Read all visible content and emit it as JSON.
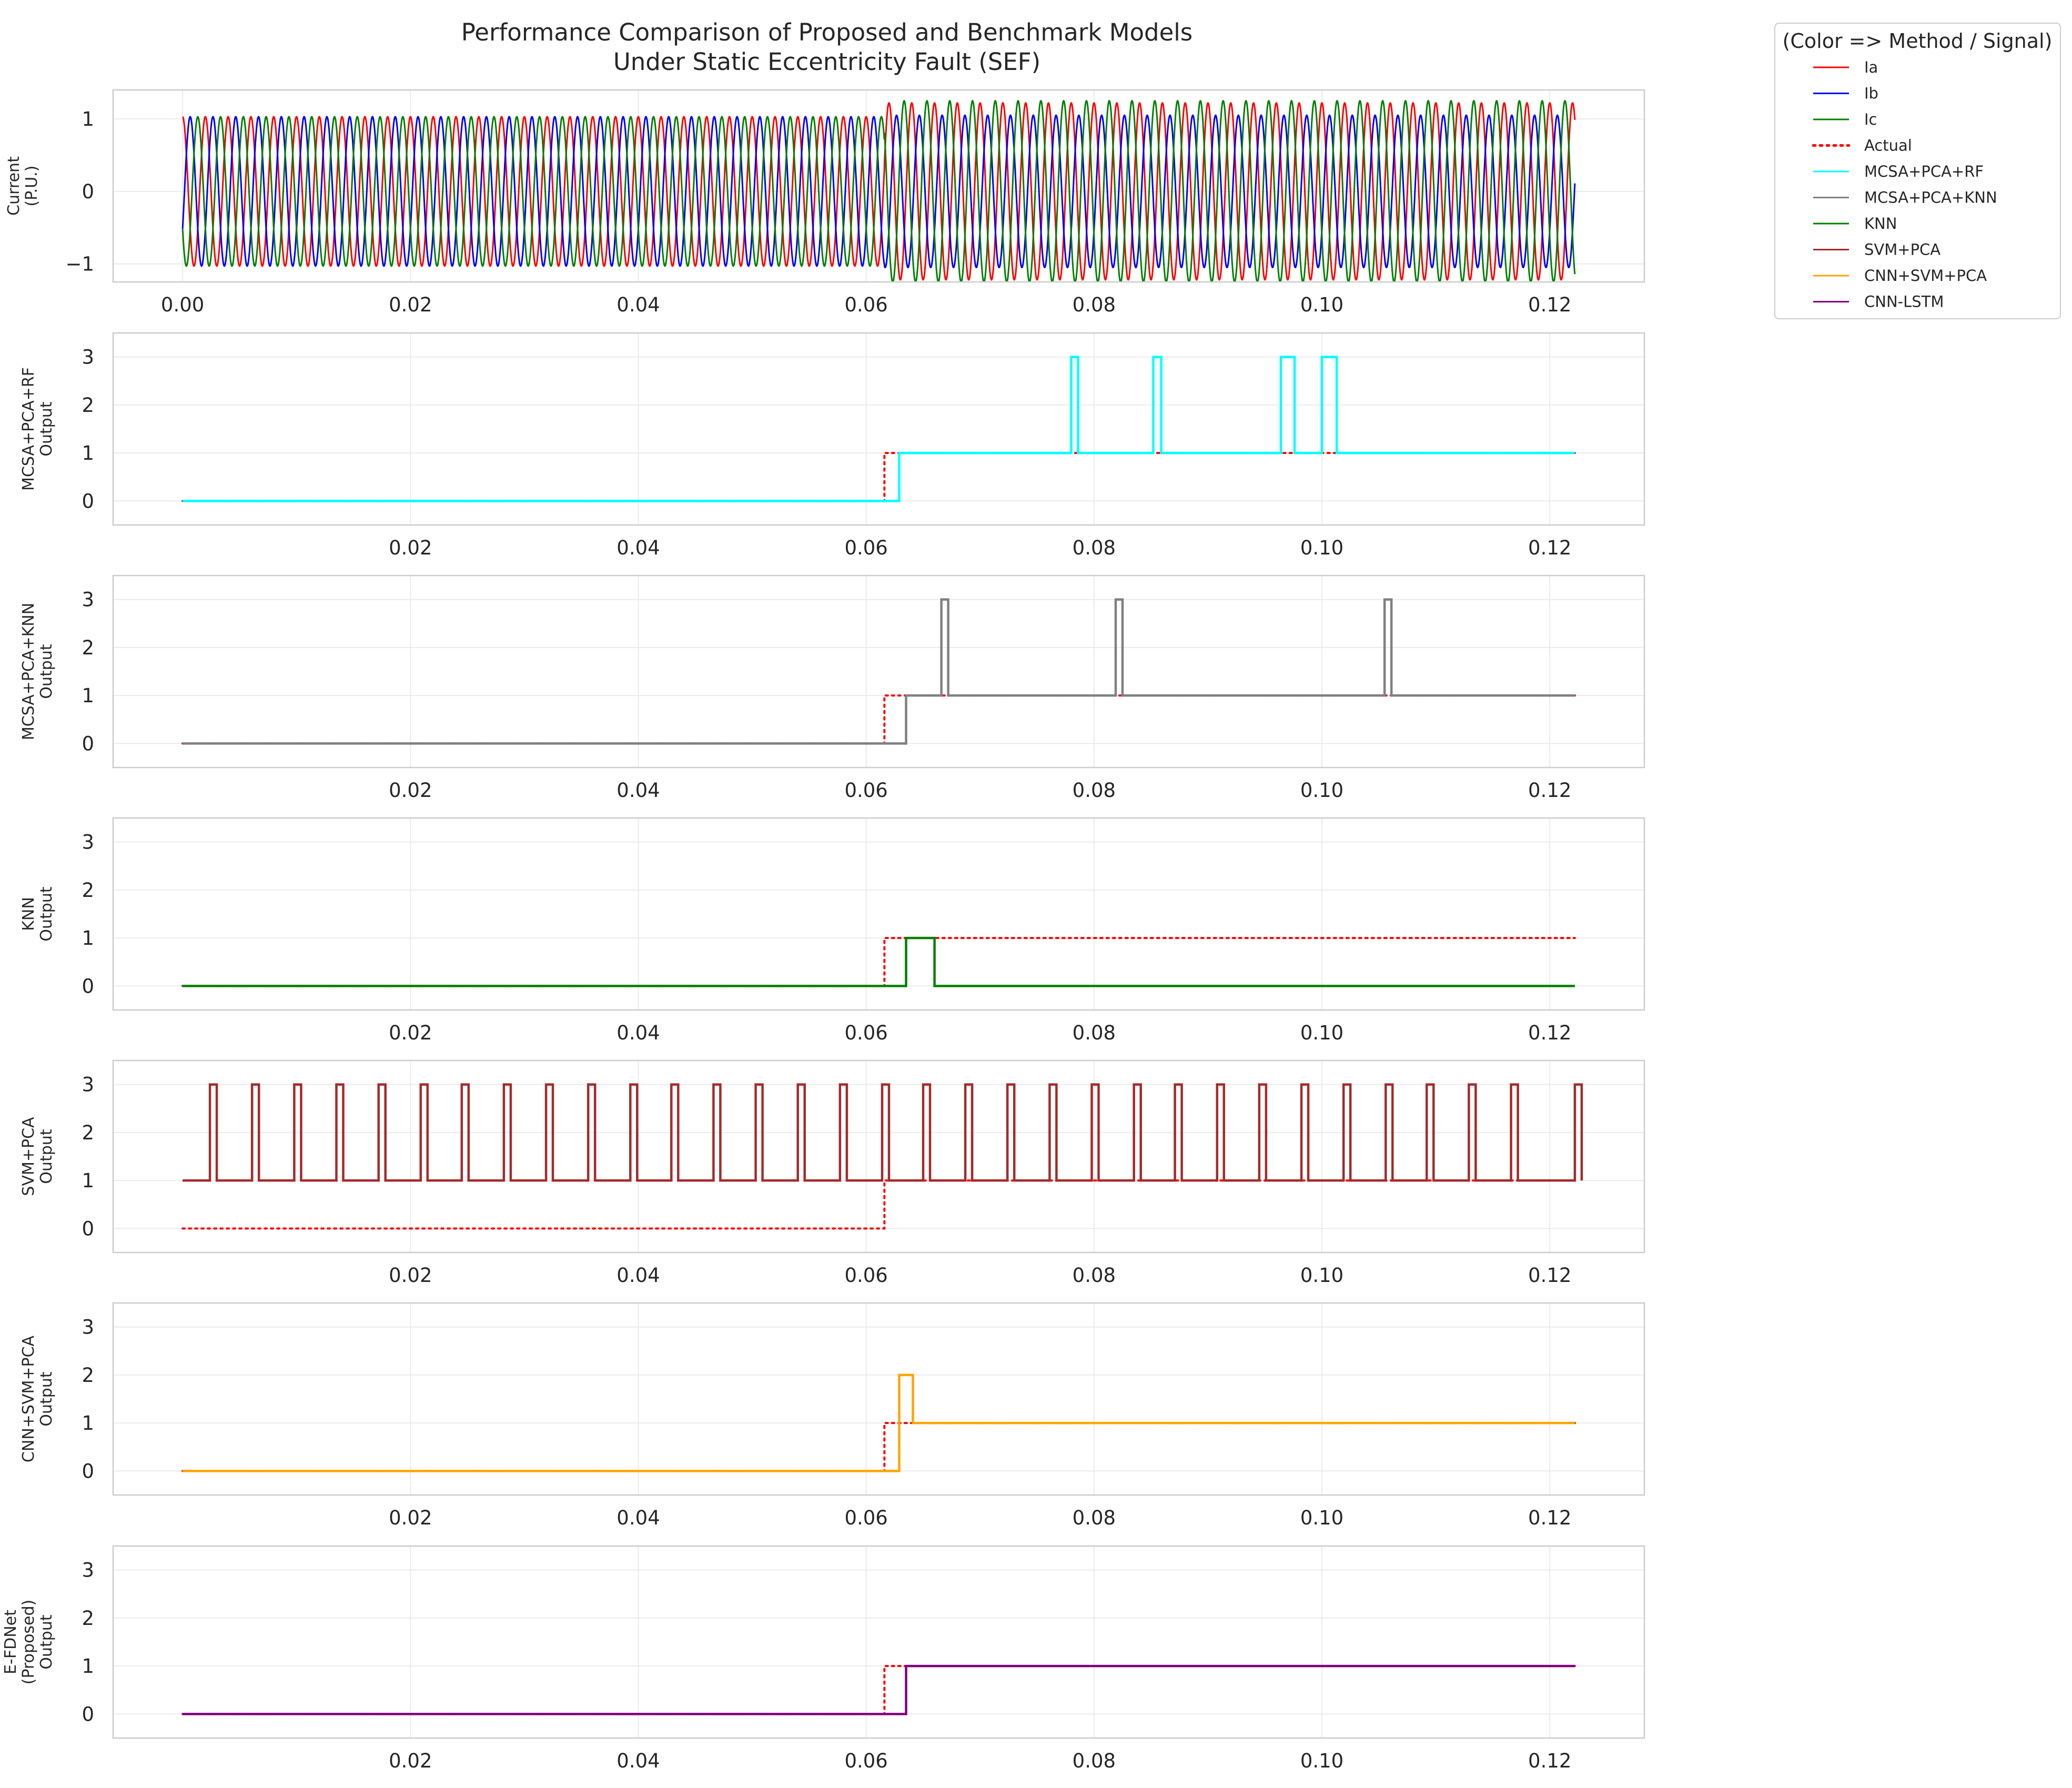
{
  "title": "Performance Comparison of Proposed and Benchmark Models",
  "subtitle": "Under Static Eccentricity Fault (SEF)",
  "legend": {
    "title": "(Color => Method / Signal)",
    "entries": [
      {
        "label": "Ia",
        "color": "#ff0000",
        "style": "solid"
      },
      {
        "label": "Ib",
        "color": "#0000ff",
        "style": "solid"
      },
      {
        "label": "Ic",
        "color": "#008000",
        "style": "solid"
      },
      {
        "label": "Actual",
        "color": "#ff0000",
        "style": "dotted"
      },
      {
        "label": "MCSA+PCA+RF",
        "color": "#00ffff",
        "style": "solid"
      },
      {
        "label": "MCSA+PCA+KNN",
        "color": "#808080",
        "style": "solid"
      },
      {
        "label": "KNN",
        "color": "#008000",
        "style": "solid"
      },
      {
        "label": "SVM+PCA",
        "color": "#a52a2a",
        "style": "solid"
      },
      {
        "label": "CNN+SVM+PCA",
        "color": "#ffa500",
        "style": "solid"
      },
      {
        "label": "CNN-LSTM",
        "color": "#800080",
        "style": "solid"
      }
    ]
  },
  "chart_data": [
    {
      "type": "line",
      "ylabel": [
        "Current",
        "(P.U.)"
      ],
      "xlim": [
        -0.0061,
        0.1283
      ],
      "ylim": [
        -1.25,
        1.4
      ],
      "xticks": [
        "0.00",
        "0.02",
        "0.04",
        "0.06",
        "0.08",
        "0.10",
        "0.12"
      ],
      "yticks": [
        "−1",
        "0",
        "1"
      ],
      "grid": true,
      "frequency_hz": 500,
      "x_range": [
        0.0,
        0.1222
      ],
      "fault_time": 0.0616,
      "series": [
        {
          "name": "Ia",
          "color": "#ff0000",
          "phase_deg": 0,
          "amplitude_before": 1.03,
          "amplitude_after": 1.22
        },
        {
          "name": "Ib",
          "color": "#0000ff",
          "phase_deg": -120,
          "amplitude_before": 1.03,
          "amplitude_after": 1.05
        },
        {
          "name": "Ic",
          "color": "#008000",
          "phase_deg": 120,
          "amplitude_before": 1.03,
          "amplitude_after": 1.25
        }
      ]
    },
    {
      "type": "line",
      "ylabel": [
        "MCSA+PCA+RF",
        "Output"
      ],
      "xlim": [
        -0.0061,
        0.1283
      ],
      "ylim": [
        -0.5,
        3.5
      ],
      "xticks": [
        "0.02",
        "0.04",
        "0.06",
        "0.08",
        "0.10",
        "0.12"
      ],
      "yticks": [
        "0",
        "1",
        "2",
        "3"
      ],
      "grid": true,
      "series": [
        {
          "name": "Actual",
          "color": "#ff0000",
          "style": "dotted",
          "x": [
            0.0,
            0.0616,
            0.0616,
            0.1222
          ],
          "y": [
            0,
            0,
            1,
            1
          ]
        },
        {
          "name": "MCSA+PCA+RF",
          "color": "#00ffff",
          "style": "solid",
          "x": [
            0.0,
            0.0629,
            0.0629,
            0.078,
            0.078,
            0.0786,
            0.0786,
            0.0852,
            0.0852,
            0.0859,
            0.0859,
            0.0964,
            0.0964,
            0.0976,
            0.0976,
            0.1,
            0.1,
            0.1013,
            0.1013,
            0.1222
          ],
          "y": [
            0,
            0,
            1,
            1,
            3,
            3,
            1,
            1,
            3,
            3,
            1,
            1,
            3,
            3,
            1,
            1,
            3,
            3,
            1,
            1
          ]
        }
      ]
    },
    {
      "type": "line",
      "ylabel": [
        "MCSA+PCA+KNN",
        "Output"
      ],
      "xlim": [
        -0.0061,
        0.1283
      ],
      "ylim": [
        -0.5,
        3.5
      ],
      "xticks": [
        "0.02",
        "0.04",
        "0.06",
        "0.08",
        "0.10",
        "0.12"
      ],
      "yticks": [
        "0",
        "1",
        "2",
        "3"
      ],
      "grid": true,
      "series": [
        {
          "name": "Actual",
          "color": "#ff0000",
          "style": "dotted",
          "x": [
            0.0,
            0.0616,
            0.0616,
            0.1222
          ],
          "y": [
            0,
            0,
            1,
            1
          ]
        },
        {
          "name": "MCSA+PCA+KNN",
          "color": "#808080",
          "style": "solid",
          "x": [
            0.0,
            0.0635,
            0.0635,
            0.0666,
            0.0666,
            0.0672,
            0.0672,
            0.0819,
            0.0819,
            0.0825,
            0.0825,
            0.1055,
            0.1055,
            0.1061,
            0.1061,
            0.1222
          ],
          "y": [
            0,
            0,
            1,
            1,
            3,
            3,
            1,
            1,
            3,
            3,
            1,
            1,
            3,
            3,
            1,
            1
          ]
        }
      ]
    },
    {
      "type": "line",
      "ylabel": [
        "KNN",
        "Output"
      ],
      "xlim": [
        -0.0061,
        0.1283
      ],
      "ylim": [
        -0.5,
        3.5
      ],
      "xticks": [
        "0.02",
        "0.04",
        "0.06",
        "0.08",
        "0.10",
        "0.12"
      ],
      "yticks": [
        "0",
        "1",
        "2",
        "3"
      ],
      "grid": true,
      "series": [
        {
          "name": "Actual",
          "color": "#ff0000",
          "style": "dotted",
          "x": [
            0.0,
            0.0616,
            0.0616,
            0.1222
          ],
          "y": [
            0,
            0,
            1,
            1
          ]
        },
        {
          "name": "KNN",
          "color": "#008000",
          "style": "solid",
          "x": [
            0.0,
            0.0635,
            0.0635,
            0.066,
            0.066,
            0.1222
          ],
          "y": [
            0,
            0,
            1,
            1,
            0,
            0
          ]
        }
      ]
    },
    {
      "type": "line",
      "ylabel": [
        "SVM+PCA",
        "Output"
      ],
      "xlim": [
        -0.0061,
        0.1283
      ],
      "ylim": [
        -0.5,
        3.5
      ],
      "xticks": [
        "0.02",
        "0.04",
        "0.06",
        "0.08",
        "0.10",
        "0.12"
      ],
      "yticks": [
        "0",
        "1",
        "2",
        "3"
      ],
      "grid": true,
      "series": [
        {
          "name": "Actual",
          "color": "#ff0000",
          "style": "dotted",
          "x": [
            0.0,
            0.0616,
            0.0616,
            0.1222
          ],
          "y": [
            0,
            0,
            1,
            1
          ]
        },
        {
          "name": "SVM+PCA",
          "color": "#a52a2a",
          "style": "solid",
          "baseline": 1,
          "peak": 3,
          "pulse_starts": [
            0.0024,
            0.0061,
            0.0098,
            0.0135,
            0.0172,
            0.0209,
            0.0245,
            0.0282,
            0.0319,
            0.0356,
            0.0393,
            0.0429,
            0.0466,
            0.0503,
            0.054,
            0.0577,
            0.0614,
            0.065,
            0.0687,
            0.0724,
            0.0761,
            0.0798,
            0.0835,
            0.0871,
            0.0908,
            0.0945,
            0.0982,
            0.1019,
            0.1056,
            0.1092,
            0.1129,
            0.1166,
            0.1222
          ],
          "pulse_width": 0.0006
        }
      ]
    },
    {
      "type": "line",
      "ylabel": [
        "CNN+SVM+PCA",
        "Output"
      ],
      "xlim": [
        -0.0061,
        0.1283
      ],
      "ylim": [
        -0.5,
        3.5
      ],
      "xticks": [
        "0.02",
        "0.04",
        "0.06",
        "0.08",
        "0.10",
        "0.12"
      ],
      "yticks": [
        "0",
        "1",
        "2",
        "3"
      ],
      "grid": true,
      "series": [
        {
          "name": "Actual",
          "color": "#ff0000",
          "style": "dotted",
          "x": [
            0.0,
            0.0616,
            0.0616,
            0.1222
          ],
          "y": [
            0,
            0,
            1,
            1
          ]
        },
        {
          "name": "CNN+SVM+PCA",
          "color": "#ffa500",
          "style": "solid",
          "x": [
            0.0,
            0.0629,
            0.0629,
            0.0641,
            0.0641,
            0.1222
          ],
          "y": [
            0,
            0,
            2,
            2,
            1,
            1
          ]
        }
      ]
    },
    {
      "type": "line",
      "ylabel": [
        "E-FDNet",
        "(Proposed)",
        "Output"
      ],
      "xlim": [
        -0.0061,
        0.1283
      ],
      "ylim": [
        -0.5,
        3.5
      ],
      "xticks": [
        "0.02",
        "0.04",
        "0.06",
        "0.08",
        "0.10",
        "0.12"
      ],
      "yticks": [
        "0",
        "1",
        "2",
        "3"
      ],
      "grid": true,
      "series": [
        {
          "name": "Actual",
          "color": "#ff0000",
          "style": "dotted",
          "x": [
            0.0,
            0.0616,
            0.0616,
            0.1222
          ],
          "y": [
            0,
            0,
            1,
            1
          ]
        },
        {
          "name": "CNN-LSTM",
          "color": "#800080",
          "style": "solid",
          "x": [
            0.0,
            0.0635,
            0.0635,
            0.1222
          ],
          "y": [
            0,
            0,
            1,
            1
          ]
        }
      ]
    }
  ]
}
